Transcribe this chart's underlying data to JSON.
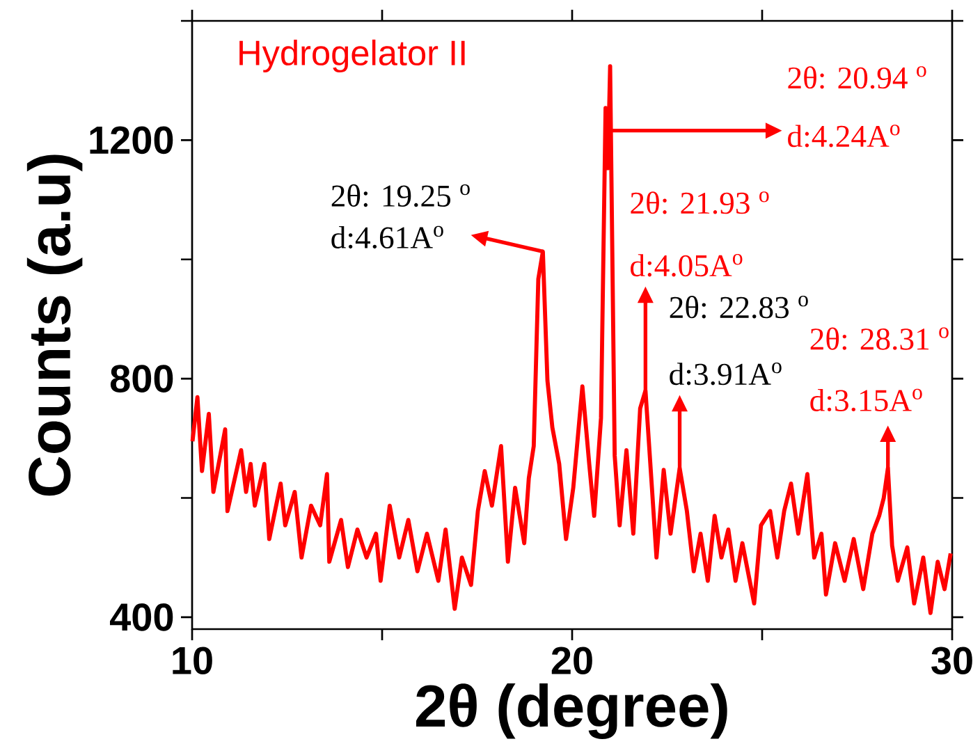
{
  "chart_data": {
    "type": "line",
    "xlabel": "2θ (degree)",
    "ylabel": "Counts (a.u)",
    "xlim": [
      10,
      30
    ],
    "ylim": [
      380,
      1400
    ],
    "xticks": [
      10,
      {
        "value": 15,
        "label": null
      },
      20,
      {
        "value": 25,
        "label": null
      },
      30
    ],
    "yticks": [
      400,
      {
        "value": 600,
        "label": null
      },
      800,
      {
        "value": 1000,
        "label": null
      },
      1200,
      {
        "value": 1400,
        "label": null
      }
    ],
    "series": [
      {
        "name": "Hydrogelator II",
        "color": "#ff0000",
        "x": [
          10.01,
          10.14,
          10.26,
          10.44,
          10.56,
          10.87,
          10.93,
          11.29,
          11.42,
          11.54,
          11.65,
          11.9,
          12.03,
          12.33,
          12.45,
          12.7,
          12.88,
          13.13,
          13.37,
          13.55,
          13.61,
          13.92,
          14.1,
          14.35,
          14.59,
          14.84,
          14.96,
          15.2,
          15.45,
          15.69,
          15.93,
          16.18,
          16.48,
          16.67,
          16.91,
          17.1,
          17.34,
          17.52,
          17.7,
          17.89,
          18.13,
          18.31,
          18.5,
          18.74,
          18.86,
          18.99,
          19.11,
          19.23,
          19.35,
          19.48,
          19.66,
          19.84,
          20.03,
          20.27,
          20.45,
          20.58,
          20.76,
          20.88,
          20.94,
          21.0,
          21.12,
          21.25,
          21.43,
          21.61,
          21.79,
          21.93,
          22.1,
          22.22,
          22.41,
          22.59,
          22.83,
          23.02,
          23.2,
          23.38,
          23.57,
          23.75,
          23.93,
          24.11,
          24.3,
          24.48,
          24.79,
          24.97,
          25.21,
          25.4,
          25.58,
          25.76,
          25.95,
          26.19,
          26.37,
          26.56,
          26.68,
          26.92,
          27.17,
          27.41,
          27.66,
          27.9,
          28.08,
          28.2,
          28.31,
          28.42,
          28.57,
          28.82,
          29.0,
          29.24,
          29.43,
          29.62,
          29.8,
          29.96
        ],
        "values": [
          695,
          769,
          645,
          741,
          610,
          715,
          578,
          680,
          610,
          657,
          587,
          657,
          531,
          624,
          554,
          610,
          500,
          587,
          554,
          640,
          493,
          563,
          484,
          547,
          500,
          540,
          461,
          587,
          500,
          563,
          477,
          540,
          461,
          547,
          414,
          500,
          454,
          578,
          645,
          587,
          687,
          493,
          617,
          524,
          633,
          687,
          967,
          1013,
          797,
          718,
          657,
          531,
          617,
          787,
          657,
          570,
          734,
          1254,
          1153,
          1324,
          671,
          554,
          680,
          540,
          750,
          780,
          617,
          500,
          647,
          540,
          650,
          578,
          477,
          540,
          461,
          570,
          500,
          547,
          461,
          524,
          423,
          554,
          578,
          500,
          578,
          624,
          540,
          640,
          500,
          540,
          438,
          524,
          461,
          531,
          447,
          540,
          570,
          600,
          650,
          520,
          461,
          517,
          423,
          500,
          407,
          493,
          447,
          507
        ]
      }
    ],
    "annotations": [
      "2θ: 19.25 $^{o}$",
      "d:4.61A$^{o}$",
      "2θ: 20.94 $^{o}$",
      "d:4.24A$^{o}$",
      "2θ: 21.93 $^{o}$",
      "d:4.05A$^{o}$",
      "2θ: 22.83 $^{o}$",
      "d:3.91A$^{o}$",
      "2θ: 28.31 $^{o}$",
      "d:3.15A$^{o}$"
    ]
  }
}
